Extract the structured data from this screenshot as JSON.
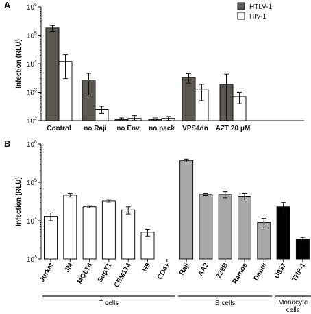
{
  "chart_data": [
    {
      "panel": "A",
      "type": "bar",
      "ylabel": "Infection (RLU)",
      "yscale": "log",
      "ylim": [
        100,
        1000000
      ],
      "yticks": [
        "10",
        "10",
        "10",
        "10",
        "10"
      ],
      "ytick_exponents": [
        "2",
        "3",
        "4",
        "5",
        "6"
      ],
      "categories": [
        "Control",
        "no Raji",
        "no Env",
        "no pack",
        "VPS4dn",
        "AZT 20 μM"
      ],
      "series": [
        {
          "name": "HTLV-1",
          "color": "#5b5750",
          "values": [
            180000,
            2700,
            110,
            110,
            3300,
            1900
          ],
          "error": [
            40000,
            1900,
            15,
            15,
            1200,
            2400
          ]
        },
        {
          "name": "HIV-1",
          "color": "#ffffff",
          "values": [
            12000,
            250,
            120,
            120,
            1200,
            700
          ],
          "error": [
            9000,
            70,
            30,
            20,
            700,
            300
          ]
        }
      ],
      "legend_position": "top-right"
    },
    {
      "panel": "B",
      "type": "bar",
      "ylabel": "Infection (RLU)",
      "yscale": "log",
      "ylim": [
        1000,
        1000000
      ],
      "yticks": [
        "10",
        "10",
        "10",
        "10"
      ],
      "ytick_exponents": [
        "3",
        "4",
        "5",
        "6"
      ],
      "categories": [
        "Jurkat",
        "JM",
        "MOLT4",
        "SupT1",
        "CEM174",
        "H9",
        "CD4+",
        "Raji",
        "AA2",
        "729B",
        "Ramos",
        "Daudi",
        "U937",
        "THP-1"
      ],
      "values": [
        13000,
        46000,
        23000,
        33000,
        19000,
        5000,
        null,
        370000,
        48000,
        48000,
        43000,
        9000,
        23000,
        3300
      ],
      "error": [
        3000,
        5000,
        1500,
        2500,
        4000,
        1000,
        null,
        30000,
        3000,
        9000,
        8000,
        2500,
        7000,
        400
      ],
      "bar_colors": [
        "#ffffff",
        "#ffffff",
        "#ffffff",
        "#ffffff",
        "#ffffff",
        "#ffffff",
        "#ffffff",
        "#a8a8a8",
        "#a8a8a8",
        "#a8a8a8",
        "#a8a8a8",
        "#a8a8a8",
        "#000000",
        "#000000"
      ],
      "groups": [
        {
          "label": "T cells",
          "first": 0,
          "last": 6
        },
        {
          "label": "B cells",
          "first": 7,
          "last": 11
        },
        {
          "label": "Monocyte cells",
          "first": 12,
          "last": 13
        }
      ]
    }
  ]
}
